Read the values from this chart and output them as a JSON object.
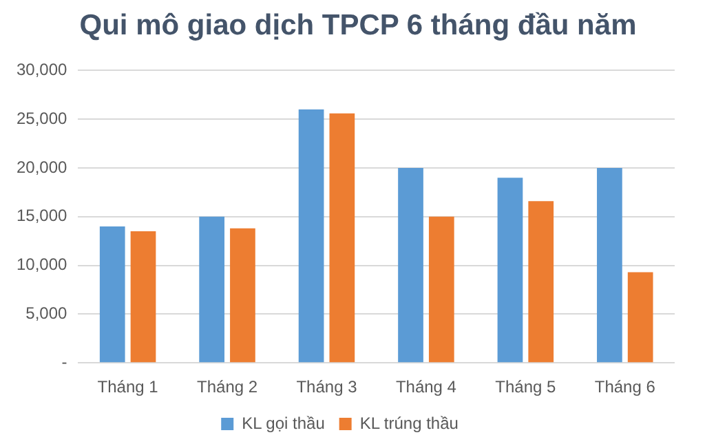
{
  "chart_data": {
    "type": "bar",
    "title": "Qui mô giao dịch TPCP 6 tháng đầu năm",
    "categories": [
      "Tháng 1",
      "Tháng 2",
      "Tháng 3",
      "Tháng 4",
      "Tháng 5",
      "Tháng 6"
    ],
    "series": [
      {
        "name": "KL gọi thầu",
        "color": "#5b9bd5",
        "values": [
          14000,
          15000,
          26000,
          20000,
          19000,
          20000
        ]
      },
      {
        "name": "KL trúng thầu",
        "color": "#ed7d31",
        "values": [
          13500,
          13800,
          25600,
          15000,
          16600,
          9300
        ]
      }
    ],
    "ylim": [
      0,
      30000
    ],
    "yticks": [
      {
        "value": 0,
        "label": "-"
      },
      {
        "value": 5000,
        "label": "5,000"
      },
      {
        "value": 10000,
        "label": "10,000"
      },
      {
        "value": 15000,
        "label": "15,000"
      },
      {
        "value": 20000,
        "label": "20,000"
      },
      {
        "value": 25000,
        "label": "25,000"
      },
      {
        "value": 30000,
        "label": "30,000"
      }
    ],
    "grid": "y",
    "legend": "bottom"
  }
}
